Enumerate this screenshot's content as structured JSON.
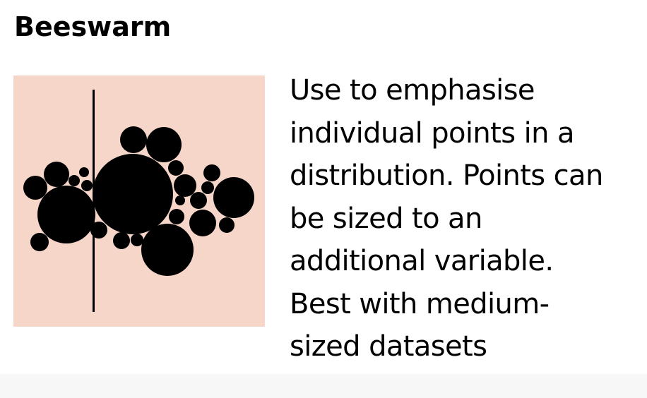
{
  "card": {
    "title": "Beeswarm",
    "description_lines": [
      "Use to emphasise",
      "individual points in a",
      "distribution. Points can",
      "be sized to an",
      "additional variable.",
      "Best with medium-",
      "sized datasets"
    ],
    "thumbnail_icon": "beeswarm-chart-icon"
  },
  "colors": {
    "thumbnail_background": "#f6d6c9",
    "marks": "#000000",
    "text": "#000000"
  }
}
